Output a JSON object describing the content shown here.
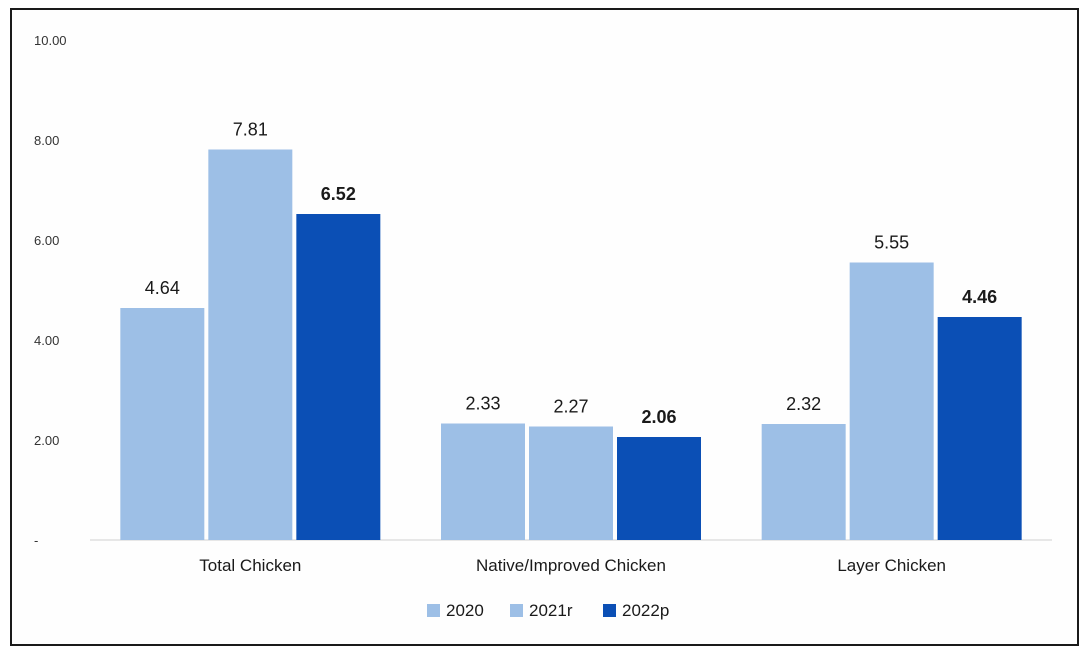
{
  "chart_data": {
    "type": "bar",
    "categories": [
      "Total Chicken",
      "Native/Improved Chicken",
      "Layer Chicken"
    ],
    "series": [
      {
        "name": "2020",
        "values": [
          4.64,
          2.33,
          2.32
        ],
        "color": "#9dbfe6"
      },
      {
        "name": "2021r",
        "values": [
          7.81,
          2.27,
          5.55
        ],
        "color": "#9dbfe6"
      },
      {
        "name": "2022p",
        "values": [
          6.52,
          2.06,
          4.46
        ],
        "color": "#0b4fb5"
      }
    ],
    "value_labels": [
      [
        "4.64",
        "2.33",
        "2.32"
      ],
      [
        "7.81",
        "2.27",
        "5.55"
      ],
      [
        "6.52",
        "2.06",
        "4.46"
      ]
    ],
    "bold_series": [
      2
    ],
    "yticks": [
      "-",
      "2.00",
      "4.00",
      "6.00",
      "8.00",
      "10.00"
    ],
    "ytick_values": [
      0,
      2,
      4,
      6,
      8,
      10
    ],
    "ylim": [
      0,
      10
    ],
    "title": "",
    "xlabel": "",
    "ylabel": "",
    "legend_position": "bottom-center",
    "grid": false
  }
}
